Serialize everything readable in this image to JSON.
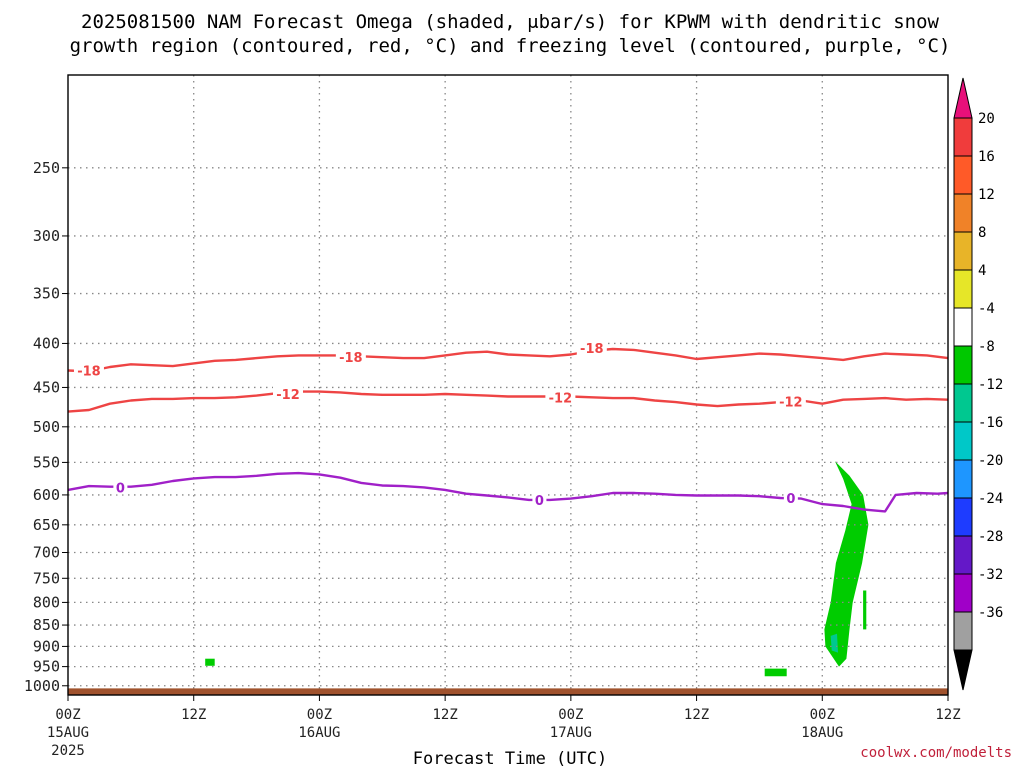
{
  "title_line1": "2025081500 NAM Forecast Omega (shaded, μbar/s) for KPWM with dendritic snow",
  "title_line2": "growth region (contoured, red, °C) and freezing level (contoured, purple, °C)",
  "credit": "coolwx.com/modelts",
  "chart_data": {
    "type": "contour",
    "xlabel": "Forecast Time (UTC)",
    "x_range_hours": [
      0,
      84
    ],
    "x_ticks": [
      {
        "h": 0,
        "l1": "00Z",
        "l2": "15AUG",
        "l3": "2025"
      },
      {
        "h": 12,
        "l1": "12Z",
        "l2": "",
        "l3": ""
      },
      {
        "h": 24,
        "l1": "00Z",
        "l2": "16AUG",
        "l3": ""
      },
      {
        "h": 36,
        "l1": "12Z",
        "l2": "",
        "l3": ""
      },
      {
        "h": 48,
        "l1": "00Z",
        "l2": "17AUG",
        "l3": ""
      },
      {
        "h": 60,
        "l1": "12Z",
        "l2": "",
        "l3": ""
      },
      {
        "h": 72,
        "l1": "00Z",
        "l2": "18AUG",
        "l3": ""
      },
      {
        "h": 84,
        "l1": "12Z",
        "l2": "",
        "l3": ""
      }
    ],
    "y_scale": "log-pressure",
    "y_range_hpa": [
      195,
      1025
    ],
    "y_ticks": [
      250,
      300,
      350,
      400,
      450,
      500,
      550,
      600,
      650,
      700,
      750,
      800,
      850,
      900,
      950,
      1000
    ],
    "grid": true,
    "contours": [
      {
        "label": "-18",
        "color": "#ee4444",
        "label_positions": [
          [
            2,
            430
          ],
          [
            27,
            415
          ],
          [
            50,
            405
          ]
        ],
        "points": [
          [
            0,
            430
          ],
          [
            2,
            431
          ],
          [
            4,
            426
          ],
          [
            6,
            423
          ],
          [
            8,
            424
          ],
          [
            10,
            425
          ],
          [
            12,
            422
          ],
          [
            14,
            419
          ],
          [
            16,
            418
          ],
          [
            18,
            416
          ],
          [
            20,
            414
          ],
          [
            22,
            413
          ],
          [
            24,
            413
          ],
          [
            26,
            413
          ],
          [
            28,
            414
          ],
          [
            30,
            415
          ],
          [
            32,
            416
          ],
          [
            34,
            416
          ],
          [
            36,
            413
          ],
          [
            38,
            410
          ],
          [
            40,
            409
          ],
          [
            42,
            412
          ],
          [
            44,
            413
          ],
          [
            46,
            414
          ],
          [
            48,
            412
          ],
          [
            50,
            408
          ],
          [
            52,
            406
          ],
          [
            54,
            407
          ],
          [
            56,
            410
          ],
          [
            58,
            413
          ],
          [
            60,
            417
          ],
          [
            62,
            415
          ],
          [
            64,
            413
          ],
          [
            66,
            411
          ],
          [
            68,
            412
          ],
          [
            70,
            414
          ],
          [
            72,
            416
          ],
          [
            74,
            418
          ],
          [
            76,
            414
          ],
          [
            78,
            411
          ],
          [
            80,
            412
          ],
          [
            82,
            413
          ],
          [
            84,
            416
          ]
        ]
      },
      {
        "label": "-12",
        "color": "#ee4444",
        "label_positions": [
          [
            21,
            458
          ],
          [
            47,
            462
          ],
          [
            69,
            467
          ]
        ],
        "points": [
          [
            0,
            480
          ],
          [
            2,
            478
          ],
          [
            4,
            470
          ],
          [
            6,
            466
          ],
          [
            8,
            464
          ],
          [
            10,
            464
          ],
          [
            12,
            463
          ],
          [
            14,
            463
          ],
          [
            16,
            462
          ],
          [
            18,
            460
          ],
          [
            20,
            457
          ],
          [
            22,
            455
          ],
          [
            24,
            455
          ],
          [
            26,
            456
          ],
          [
            28,
            458
          ],
          [
            30,
            459
          ],
          [
            32,
            459
          ],
          [
            34,
            459
          ],
          [
            36,
            458
          ],
          [
            38,
            459
          ],
          [
            40,
            460
          ],
          [
            42,
            461
          ],
          [
            44,
            461
          ],
          [
            46,
            461
          ],
          [
            48,
            461
          ],
          [
            50,
            462
          ],
          [
            52,
            463
          ],
          [
            54,
            463
          ],
          [
            56,
            466
          ],
          [
            58,
            468
          ],
          [
            60,
            471
          ],
          [
            62,
            473
          ],
          [
            64,
            471
          ],
          [
            66,
            470
          ],
          [
            68,
            468
          ],
          [
            70,
            466
          ],
          [
            72,
            470
          ],
          [
            74,
            465
          ],
          [
            76,
            464
          ],
          [
            78,
            463
          ],
          [
            80,
            465
          ],
          [
            82,
            464
          ],
          [
            84,
            465
          ]
        ]
      },
      {
        "label": "0",
        "color": "#a020c8",
        "label_positions": [
          [
            5,
            588
          ],
          [
            45,
            608
          ],
          [
            69,
            605
          ]
        ],
        "points": [
          [
            0,
            592
          ],
          [
            2,
            586
          ],
          [
            4,
            587
          ],
          [
            6,
            587
          ],
          [
            8,
            584
          ],
          [
            10,
            578
          ],
          [
            12,
            574
          ],
          [
            14,
            572
          ],
          [
            16,
            572
          ],
          [
            18,
            570
          ],
          [
            20,
            567
          ],
          [
            22,
            566
          ],
          [
            24,
            568
          ],
          [
            26,
            573
          ],
          [
            28,
            581
          ],
          [
            30,
            585
          ],
          [
            32,
            586
          ],
          [
            34,
            588
          ],
          [
            36,
            592
          ],
          [
            38,
            598
          ],
          [
            40,
            601
          ],
          [
            42,
            604
          ],
          [
            44,
            608
          ],
          [
            46,
            608
          ],
          [
            48,
            606
          ],
          [
            50,
            602
          ],
          [
            52,
            597
          ],
          [
            54,
            597
          ],
          [
            56,
            598
          ],
          [
            58,
            600
          ],
          [
            60,
            601
          ],
          [
            62,
            601
          ],
          [
            64,
            601
          ],
          [
            66,
            602
          ],
          [
            68,
            605
          ],
          [
            70,
            606
          ],
          [
            72,
            615
          ],
          [
            74,
            618
          ],
          [
            76,
            624
          ],
          [
            78,
            627
          ],
          [
            79,
            600
          ],
          [
            81,
            597
          ],
          [
            83,
            598
          ],
          [
            84,
            597
          ]
        ]
      }
    ],
    "shading": [
      {
        "value_range": [
          -8,
          -4
        ],
        "color": "#00cc00",
        "polygon": [
          [
            73.2,
            548
          ],
          [
            74,
            575
          ],
          [
            74.8,
            615
          ],
          [
            74.2,
            660
          ],
          [
            73.3,
            720
          ],
          [
            72.8,
            800
          ],
          [
            72.2,
            860
          ],
          [
            72.3,
            900
          ],
          [
            73.6,
            950
          ],
          [
            74.3,
            930
          ],
          [
            74.6,
            860
          ],
          [
            74.9,
            800
          ],
          [
            75.8,
            720
          ],
          [
            76.4,
            650
          ],
          [
            75.9,
            600
          ],
          [
            74.6,
            570
          ]
        ]
      },
      {
        "value_range": [
          -8,
          -4
        ],
        "color": "#00cc00",
        "polygon": [
          [
            75.9,
            775
          ],
          [
            76.2,
            775
          ],
          [
            76.2,
            860
          ],
          [
            75.9,
            860
          ]
        ]
      },
      {
        "value_range": [
          -8,
          -4
        ],
        "color": "#00cc00",
        "polygon": [
          [
            13.1,
            930
          ],
          [
            14,
            930
          ],
          [
            14,
            948
          ],
          [
            13.1,
            948
          ]
        ]
      },
      {
        "value_range": [
          -8,
          -4
        ],
        "color": "#00cc00",
        "polygon": [
          [
            66.5,
            955
          ],
          [
            68.6,
            955
          ],
          [
            68.6,
            975
          ],
          [
            66.5,
            975
          ]
        ]
      },
      {
        "value_range": [
          -12,
          -8
        ],
        "color": "#00c890",
        "polygon": [
          [
            72.8,
            875
          ],
          [
            73.4,
            870
          ],
          [
            73.5,
            915
          ],
          [
            72.9,
            910
          ]
        ]
      }
    ],
    "ground": {
      "color": "#a0522d",
      "pressure_hpa": 1007
    },
    "colorbar": {
      "labels": [
        "20",
        "16",
        "12",
        "8",
        "4",
        "-4",
        "-8",
        "-12",
        "-16",
        "-20",
        "-24",
        "-28",
        "-32",
        "-36"
      ],
      "bands": [
        {
          "color": "#e8107a",
          "role": "arrow-top"
        },
        {
          "color": "#f03c3c"
        },
        {
          "color": "#ff5a28"
        },
        {
          "color": "#f08228"
        },
        {
          "color": "#e8b428"
        },
        {
          "color": "#e6e628"
        },
        {
          "color": "#ffffff"
        },
        {
          "color": "#00c800"
        },
        {
          "color": "#00c890"
        },
        {
          "color": "#00c8c8"
        },
        {
          "color": "#1e96ff"
        },
        {
          "color": "#1e3cff"
        },
        {
          "color": "#6418c8"
        },
        {
          "color": "#a000c8"
        },
        {
          "color": "#a0a0a0"
        },
        {
          "color": "#000000",
          "role": "arrow-bottom"
        }
      ]
    }
  }
}
